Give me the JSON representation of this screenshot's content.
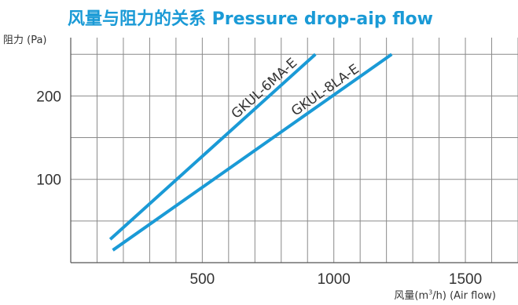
{
  "title": "风量与阻力的关系  Pressure drop-aip flow",
  "chart_data": {
    "type": "line",
    "title": "风量与阻力的关系  Pressure drop-aip flow",
    "ylabel": "阻力 (Pa)",
    "xlabel_prefix": "风量(m",
    "xlabel_sup": "3",
    "xlabel_suffix": "/h)  (Air flow)",
    "xlim": [
      0,
      1700
    ],
    "ylim": [
      0,
      270
    ],
    "x_ticks": [
      500,
      1000,
      1500
    ],
    "y_ticks": [
      100,
      200
    ],
    "grid": true,
    "series": [
      {
        "name": "GKUL-6MA-E",
        "color": "#1a9ad6",
        "x": [
          150,
          930
        ],
        "y": [
          28,
          250
        ]
      },
      {
        "name": "GKUL-8LA-E",
        "color": "#1a9ad6",
        "x": [
          160,
          1220
        ],
        "y": [
          15,
          250
        ]
      }
    ]
  }
}
